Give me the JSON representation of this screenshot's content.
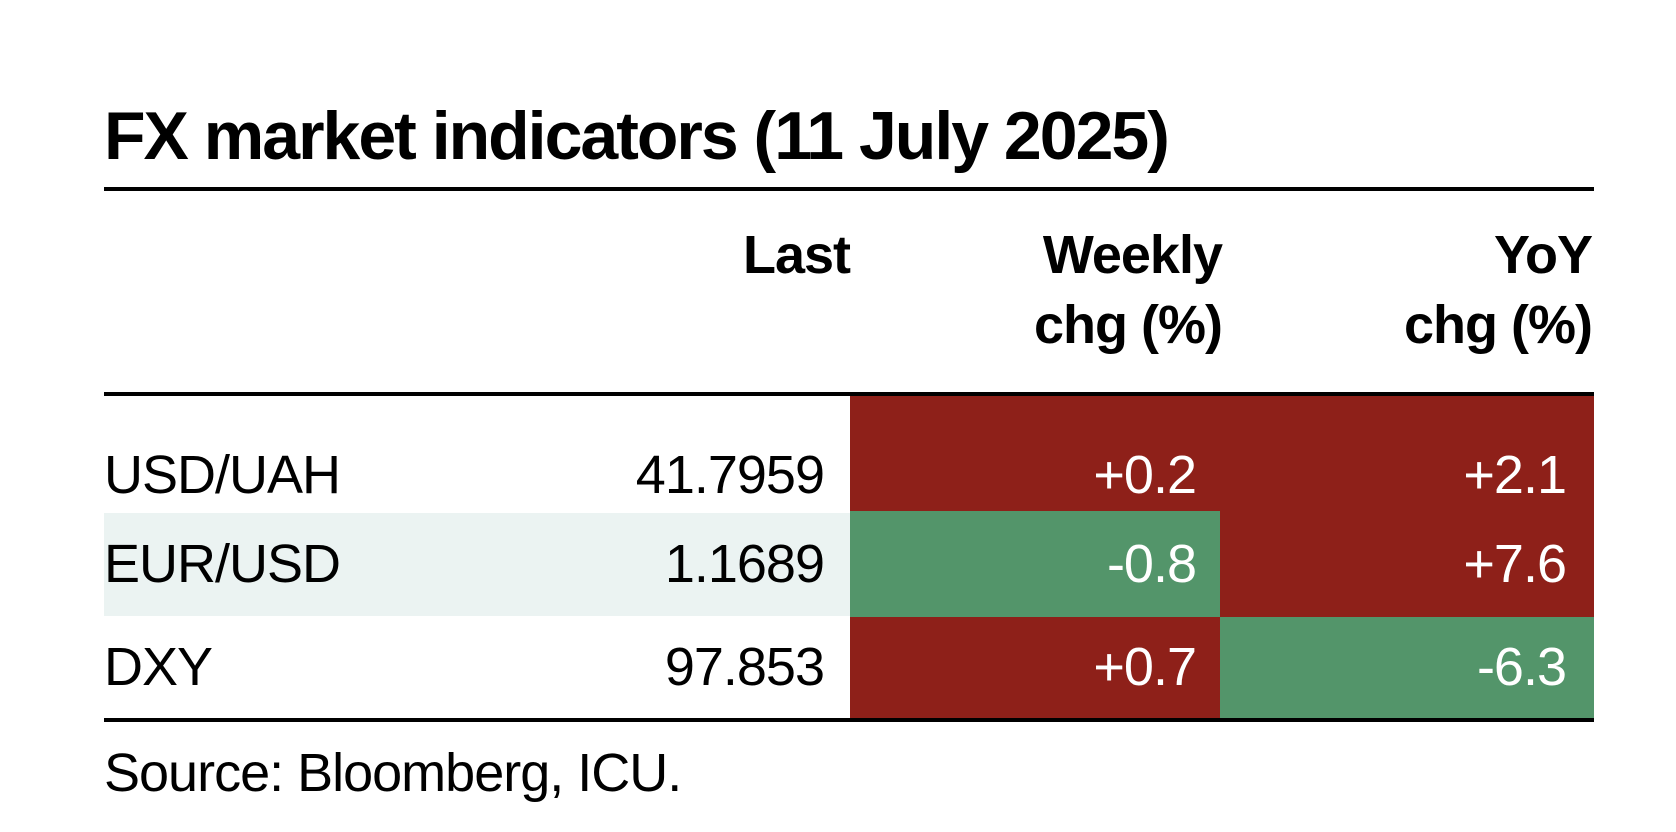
{
  "chart_data": {
    "type": "table",
    "title": "FX market indicators (11 July 2025)",
    "columns": [
      "",
      "Last",
      "Weekly chg (%)",
      "YoY chg (%)"
    ],
    "header": {
      "last": "Last",
      "weekly_line1": "Weekly",
      "weekly_line2": "chg (%)",
      "yoy_line1": "YoY",
      "yoy_line2": "chg (%)"
    },
    "rows": [
      {
        "label": "USD/UAH",
        "last": "41.7959",
        "weekly": "+0.2",
        "yoy": "+2.1",
        "weekly_value": 0.2,
        "yoy_value": 2.1
      },
      {
        "label": "EUR/USD",
        "last": "1.1689",
        "weekly": "-0.8",
        "yoy": "+7.6",
        "weekly_value": -0.8,
        "yoy_value": 7.6
      },
      {
        "label": "DXY",
        "last": "97.853",
        "weekly": "+0.7",
        "yoy": "-6.3",
        "weekly_value": 0.7,
        "yoy_value": -6.3
      }
    ],
    "source": "Source: Bloomberg, ICU."
  },
  "colors": {
    "red": "#8e2019",
    "green": "#53956a",
    "band": "#ebf3f2",
    "text": "#000000"
  }
}
